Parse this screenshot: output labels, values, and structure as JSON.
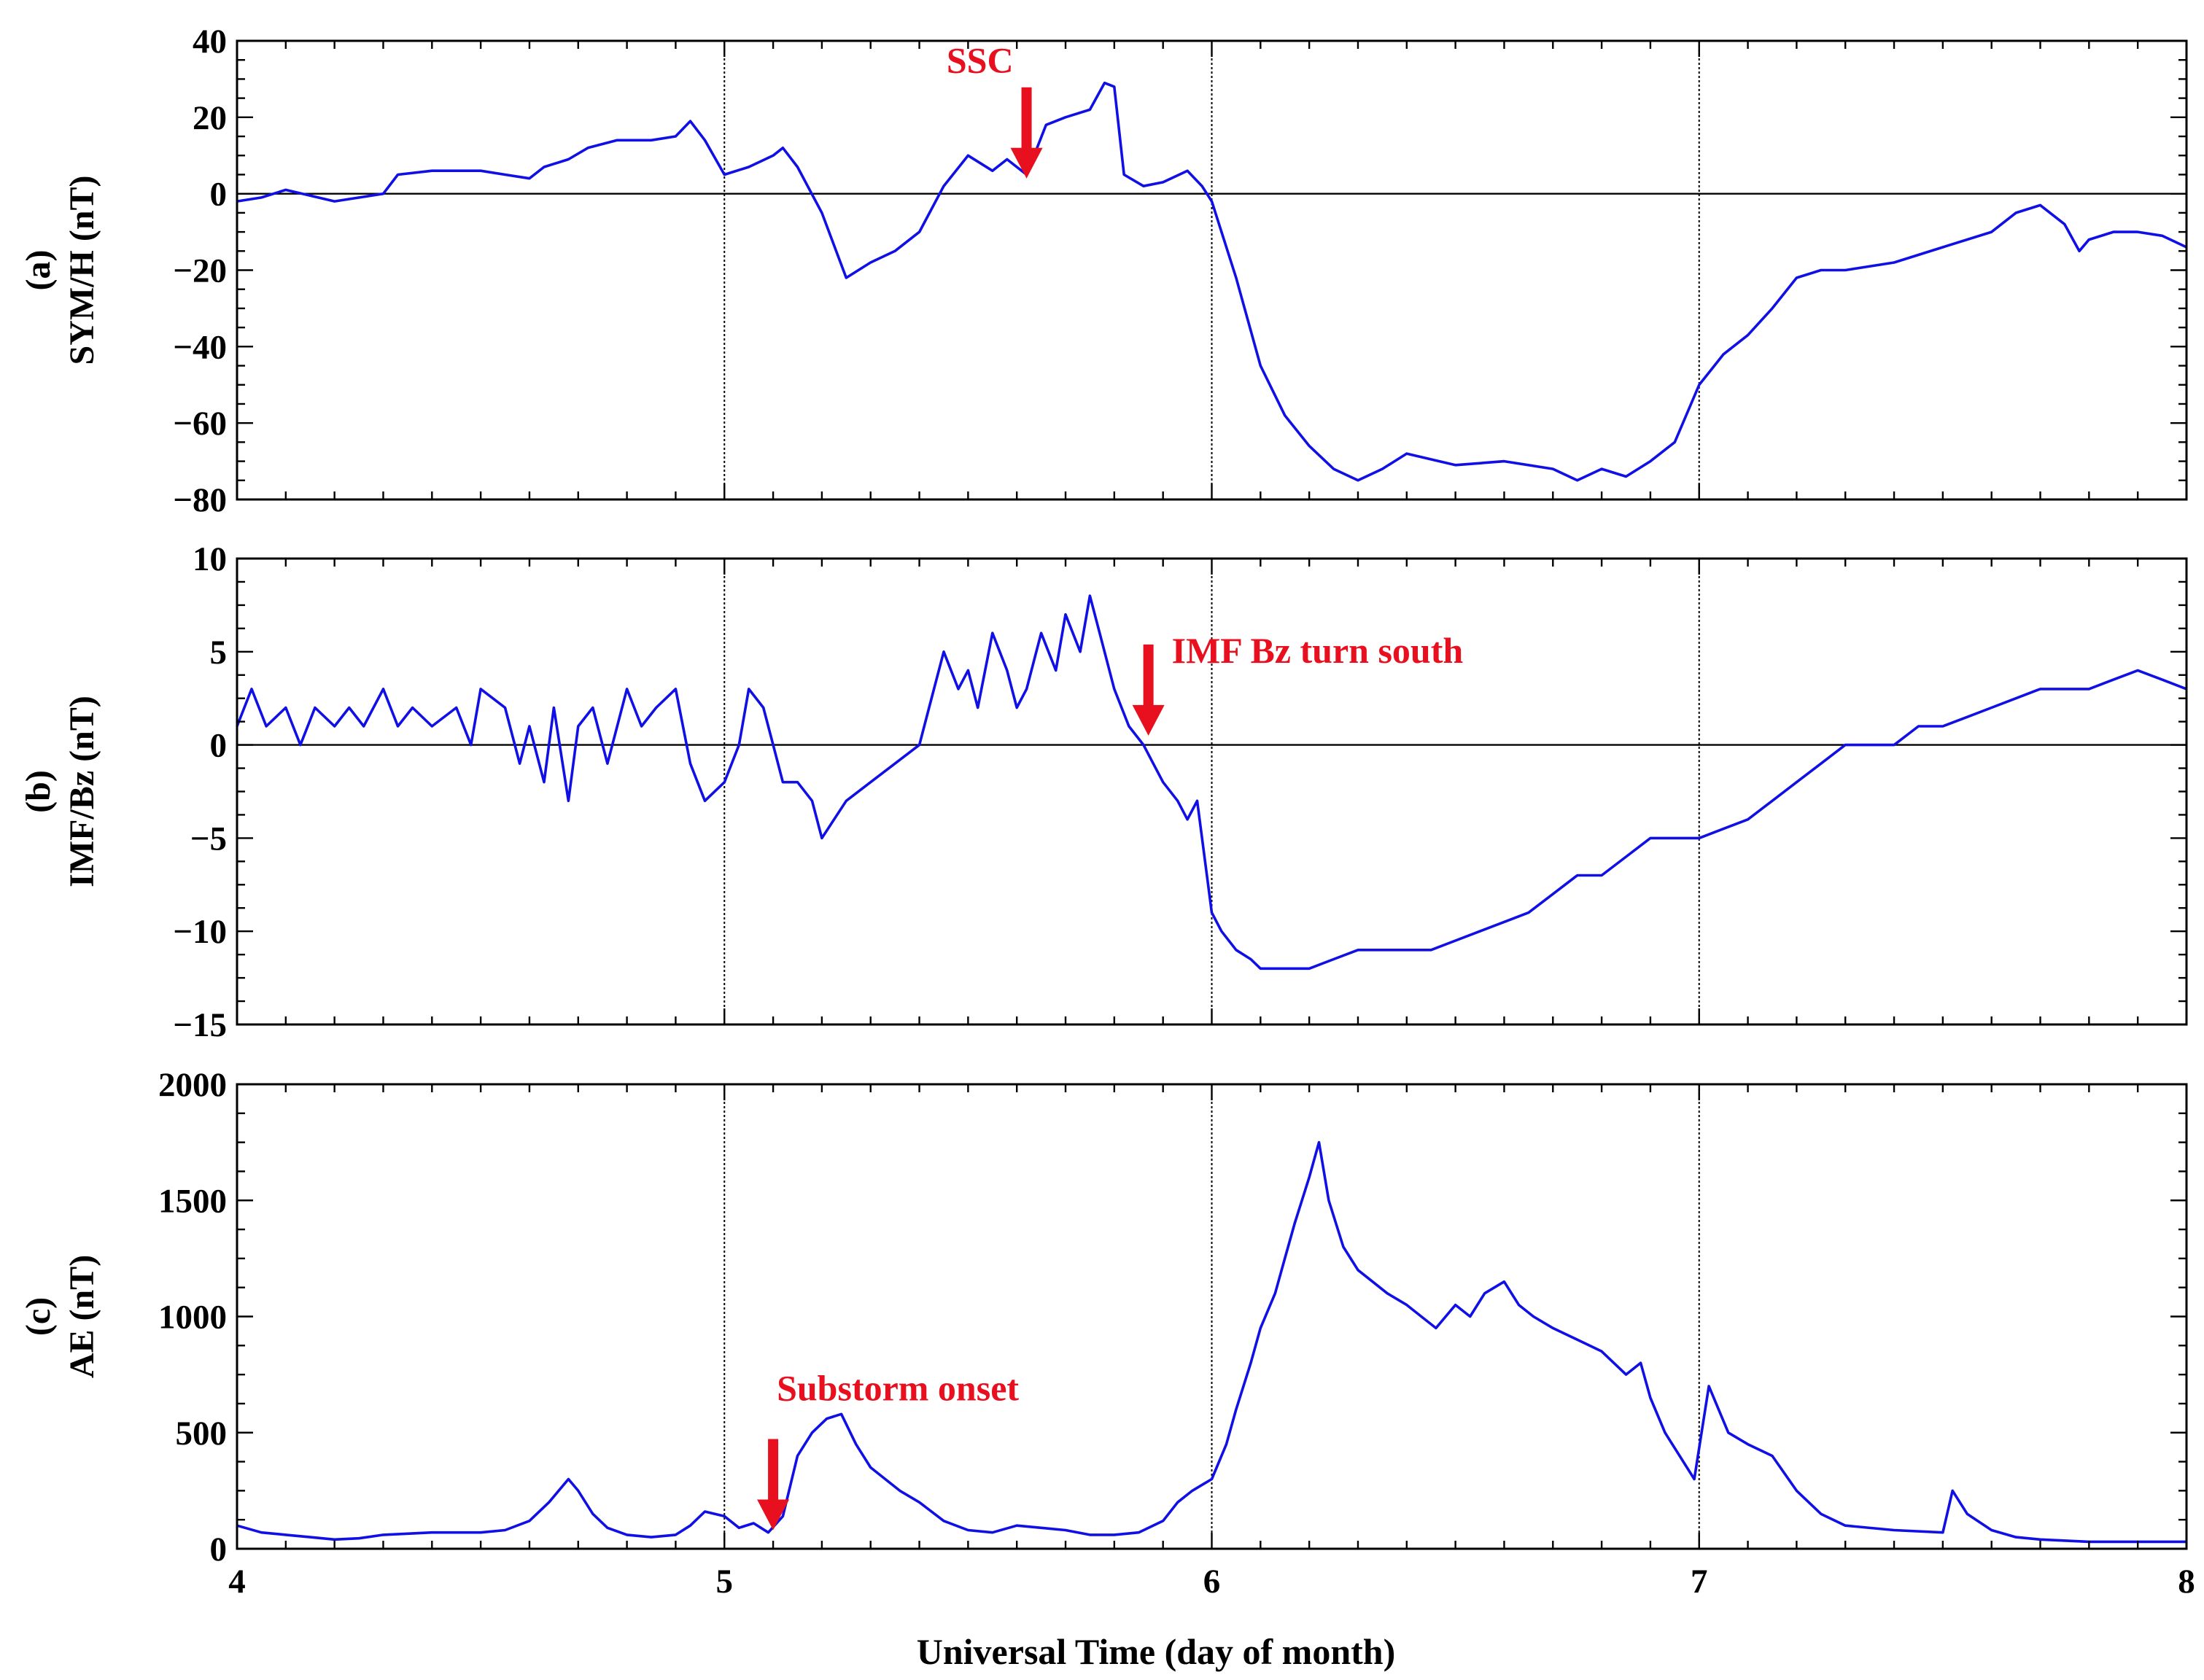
{
  "chart_data": {
    "type": "line",
    "x_axis": {
      "label": "Universal Time (day of month)",
      "range": [
        4,
        8
      ],
      "ticks": [
        4,
        5,
        6,
        7,
        8
      ],
      "tick_labels": [
        "4",
        "5",
        "6",
        "7",
        "8"
      ],
      "vertical_gridlines": [
        5,
        6,
        7
      ]
    },
    "panels": [
      {
        "id": "a",
        "panel_label": "(a)",
        "ylabel": "SYM/H (nT)",
        "ylim": [
          -80,
          40
        ],
        "yticks": [
          -80,
          -60,
          -40,
          -20,
          0,
          20,
          40
        ],
        "ytick_labels": [
          "−80",
          "−60",
          "−40",
          "−20",
          "0",
          "20",
          "40"
        ],
        "zero_line": true,
        "series": {
          "x": [
            4.0,
            4.05,
            4.1,
            4.2,
            4.3,
            4.33,
            4.4,
            4.5,
            4.55,
            4.6,
            4.63,
            4.68,
            4.72,
            4.78,
            4.85,
            4.9,
            4.93,
            4.96,
            5.0,
            5.05,
            5.1,
            5.12,
            5.15,
            5.2,
            5.25,
            5.3,
            5.35,
            5.4,
            5.45,
            5.5,
            5.55,
            5.58,
            5.62,
            5.66,
            5.7,
            5.75,
            5.78,
            5.8,
            5.82,
            5.86,
            5.9,
            5.95,
            5.98,
            6.0,
            6.05,
            6.1,
            6.15,
            6.2,
            6.25,
            6.3,
            6.35,
            6.4,
            6.5,
            6.6,
            6.7,
            6.75,
            6.8,
            6.85,
            6.9,
            6.95,
            7.0,
            7.05,
            7.1,
            7.15,
            7.2,
            7.25,
            7.3,
            7.4,
            7.5,
            7.6,
            7.65,
            7.7,
            7.75,
            7.78,
            7.8,
            7.85,
            7.9,
            7.95,
            8.0
          ],
          "y": [
            -2,
            -1,
            1,
            -2,
            0,
            5,
            6,
            6,
            5,
            4,
            7,
            9,
            12,
            14,
            14,
            15,
            19,
            14,
            5,
            7,
            10,
            12,
            7,
            -5,
            -22,
            -18,
            -15,
            -10,
            2,
            10,
            6,
            9,
            5,
            18,
            20,
            22,
            29,
            28,
            5,
            2,
            3,
            6,
            2,
            -2,
            -22,
            -45,
            -58,
            -66,
            -72,
            -75,
            -72,
            -68,
            -71,
            -70,
            -72,
            -75,
            -72,
            -74,
            -70,
            -65,
            -50,
            -42,
            -37,
            -30,
            -22,
            -20,
            -20,
            -18,
            -14,
            -10,
            -5,
            -3,
            -8,
            -15,
            -12,
            -10,
            -10,
            -11,
            -14
          ]
        },
        "annotations": [
          {
            "text": "SSC",
            "x": 5.62,
            "y": 4
          }
        ]
      },
      {
        "id": "b",
        "panel_label": "(b)",
        "ylabel": "IMF/Bz (nT)",
        "ylim": [
          -15,
          10
        ],
        "yticks": [
          -15,
          -10,
          -5,
          0,
          5,
          10
        ],
        "ytick_labels": [
          "−15",
          "−10",
          "−5",
          "0",
          "5",
          "10"
        ],
        "zero_line": true,
        "series": {
          "x": [
            4.0,
            4.03,
            4.06,
            4.1,
            4.13,
            4.16,
            4.2,
            4.23,
            4.26,
            4.3,
            4.33,
            4.36,
            4.4,
            4.45,
            4.48,
            4.5,
            4.55,
            4.58,
            4.6,
            4.63,
            4.65,
            4.68,
            4.7,
            4.73,
            4.76,
            4.8,
            4.83,
            4.86,
            4.9,
            4.93,
            4.96,
            5.0,
            5.03,
            5.05,
            5.08,
            5.1,
            5.12,
            5.15,
            5.18,
            5.2,
            5.25,
            5.3,
            5.35,
            5.4,
            5.42,
            5.45,
            5.48,
            5.5,
            5.52,
            5.55,
            5.58,
            5.6,
            5.62,
            5.65,
            5.68,
            5.7,
            5.73,
            5.75,
            5.77,
            5.8,
            5.83,
            5.86,
            5.88,
            5.9,
            5.93,
            5.95,
            5.97,
            6.0,
            6.02,
            6.05,
            6.08,
            6.1,
            6.15,
            6.2,
            6.25,
            6.3,
            6.35,
            6.4,
            6.45,
            6.5,
            6.55,
            6.6,
            6.65,
            6.7,
            6.75,
            6.8,
            6.85,
            6.9,
            6.95,
            7.0,
            7.05,
            7.1,
            7.15,
            7.2,
            7.25,
            7.3,
            7.35,
            7.4,
            7.45,
            7.5,
            7.55,
            7.6,
            7.65,
            7.7,
            7.75,
            7.8,
            7.85,
            7.9,
            7.95,
            8.0
          ],
          "y": [
            1,
            3,
            1,
            2,
            0,
            2,
            1,
            2,
            1,
            3,
            1,
            2,
            1,
            2,
            0,
            3,
            2,
            -1,
            1,
            -2,
            2,
            -3,
            1,
            2,
            -1,
            3,
            1,
            2,
            3,
            -1,
            -3,
            -2,
            0,
            3,
            2,
            0,
            -2,
            -2,
            -3,
            -5,
            -3,
            -2,
            -1,
            0,
            2,
            5,
            3,
            4,
            2,
            6,
            4,
            2,
            3,
            6,
            4,
            7,
            5,
            8,
            6,
            3,
            1,
            0,
            -1,
            -2,
            -3,
            -4,
            -3,
            -9,
            -10,
            -11,
            -11.5,
            -12,
            -12,
            -12,
            -11.5,
            -11,
            -11,
            -11,
            -11,
            -10.5,
            -10,
            -9.5,
            -9,
            -8,
            -7,
            -7,
            -6,
            -5,
            -5,
            -5,
            -4.5,
            -4,
            -3,
            -2,
            -1,
            0,
            0,
            0,
            1,
            1,
            1.5,
            2,
            2.5,
            3,
            3,
            3,
            3.5,
            4,
            3.5,
            3
          ]
        },
        "annotations": [
          {
            "text": "IMF Bz turn south",
            "x": 5.87,
            "y": 0.5
          }
        ]
      },
      {
        "id": "c",
        "panel_label": "(c)",
        "ylabel": "AE (nT)",
        "ylim": [
          0,
          2000
        ],
        "yticks": [
          0,
          500,
          1000,
          1500,
          2000
        ],
        "ytick_labels": [
          "0",
          "500",
          "1000",
          "1500",
          "2000"
        ],
        "zero_line": false,
        "series": {
          "x": [
            4.0,
            4.05,
            4.1,
            4.15,
            4.2,
            4.25,
            4.3,
            4.35,
            4.4,
            4.45,
            4.5,
            4.55,
            4.6,
            4.64,
            4.68,
            4.7,
            4.73,
            4.76,
            4.8,
            4.85,
            4.9,
            4.93,
            4.96,
            5.0,
            5.03,
            5.06,
            5.09,
            5.12,
            5.15,
            5.18,
            5.21,
            5.24,
            5.27,
            5.3,
            5.33,
            5.36,
            5.4,
            5.45,
            5.5,
            5.55,
            5.6,
            5.65,
            5.7,
            5.75,
            5.8,
            5.85,
            5.9,
            5.93,
            5.96,
            6.0,
            6.03,
            6.05,
            6.08,
            6.1,
            6.13,
            6.15,
            6.17,
            6.2,
            6.22,
            6.24,
            6.27,
            6.3,
            6.33,
            6.36,
            6.4,
            6.43,
            6.46,
            6.5,
            6.53,
            6.56,
            6.6,
            6.63,
            6.66,
            6.7,
            6.75,
            6.8,
            6.85,
            6.88,
            6.9,
            6.93,
            6.96,
            6.99,
            7.02,
            7.06,
            7.1,
            7.15,
            7.2,
            7.25,
            7.3,
            7.4,
            7.5,
            7.52,
            7.55,
            7.6,
            7.65,
            7.7,
            7.8,
            7.9,
            8.0
          ],
          "y": [
            100,
            70,
            60,
            50,
            40,
            45,
            60,
            65,
            70,
            70,
            70,
            80,
            120,
            200,
            300,
            250,
            150,
            90,
            60,
            50,
            60,
            100,
            160,
            140,
            90,
            110,
            70,
            140,
            400,
            500,
            560,
            580,
            450,
            350,
            300,
            250,
            200,
            120,
            80,
            70,
            100,
            90,
            80,
            60,
            60,
            70,
            120,
            200,
            250,
            300,
            450,
            600,
            800,
            950,
            1100,
            1250,
            1400,
            1600,
            1750,
            1500,
            1300,
            1200,
            1150,
            1100,
            1050,
            1000,
            950,
            1050,
            1000,
            1100,
            1150,
            1050,
            1000,
            950,
            900,
            850,
            750,
            800,
            650,
            500,
            400,
            300,
            700,
            500,
            450,
            400,
            250,
            150,
            100,
            80,
            70,
            250,
            150,
            80,
            50,
            40,
            30,
            30,
            30
          ]
        },
        "annotations": [
          {
            "text": "Substorm onset",
            "x": 5.1,
            "y": 80
          }
        ]
      }
    ],
    "colors": {
      "series": "#1010e6",
      "annotation": "#e8101e",
      "axes": "#000000"
    }
  }
}
